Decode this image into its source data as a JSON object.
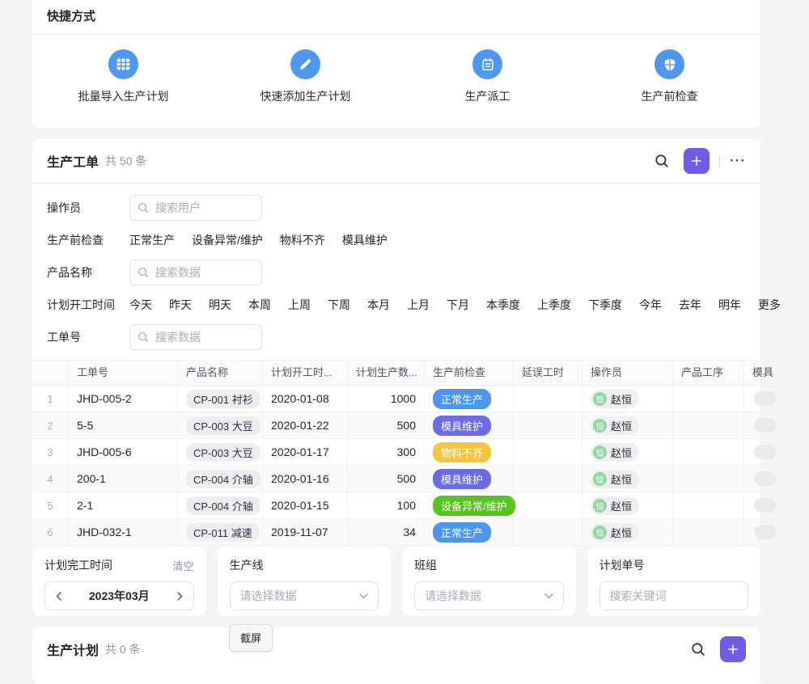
{
  "shortcuts": {
    "title": "快捷方式",
    "items": [
      {
        "label": "批量导入生产计划",
        "icon": "grid-icon"
      },
      {
        "label": "快速添加生产计划",
        "icon": "pencil-icon"
      },
      {
        "label": "生产派工",
        "icon": "clipboard-icon"
      },
      {
        "label": "生产前检查",
        "icon": "shield-icon"
      }
    ]
  },
  "work_orders": {
    "title": "生产工单",
    "count_text": "共 50 条",
    "filters": [
      {
        "label": "操作员",
        "type": "search",
        "placeholder": "搜索用户"
      },
      {
        "label": "生产前检查",
        "type": "options",
        "options": [
          "正常生产",
          "设备异常/维护",
          "物料不齐",
          "模具维护"
        ]
      },
      {
        "label": "产品名称",
        "type": "search",
        "placeholder": "搜索数据"
      },
      {
        "label": "计划开工时间",
        "type": "options",
        "options": [
          "今天",
          "昨天",
          "明天",
          "本周",
          "上周",
          "下周",
          "本月",
          "上月",
          "下月",
          "本季度",
          "上季度",
          "下季度",
          "今年",
          "去年",
          "明年"
        ],
        "more": "更多"
      },
      {
        "label": "工单号",
        "type": "search",
        "placeholder": "搜索数据"
      }
    ],
    "table": {
      "columns": [
        "",
        "工单号",
        "产品名称",
        "计划开工时...",
        "计划生产数...",
        "生产前检查",
        "延误工时",
        "操作员",
        "产品工序",
        "模具"
      ],
      "rows": [
        {
          "num": "1",
          "order_no": "JHD-005-2",
          "product": "CP-001 衬衫",
          "start_date": "2020-01-08",
          "qty": "1000",
          "check": "正常生产",
          "delay": "",
          "operator": "赵恒",
          "avatar_char": "恒"
        },
        {
          "num": "2",
          "order_no": "5-5",
          "product": "CP-003 大豆",
          "start_date": "2020-01-22",
          "qty": "500",
          "check": "模具维护",
          "delay": "",
          "operator": "赵恒",
          "avatar_char": "恒"
        },
        {
          "num": "3",
          "order_no": "JHD-005-6",
          "product": "CP-003 大豆",
          "start_date": "2020-01-17",
          "qty": "300",
          "check": "物料不齐",
          "delay": "",
          "operator": "赵恒",
          "avatar_char": "恒"
        },
        {
          "num": "4",
          "order_no": "200-1",
          "product": "CP-004 介轴",
          "start_date": "2020-01-16",
          "qty": "500",
          "check": "模具维护",
          "delay": "",
          "operator": "赵恒",
          "avatar_char": "恒"
        },
        {
          "num": "5",
          "order_no": "2-1",
          "product": "CP-004 介轴",
          "start_date": "2020-01-15",
          "qty": "100",
          "check": "设备异常/维护",
          "delay": "",
          "operator": "赵恒",
          "avatar_char": "恒"
        },
        {
          "num": "6",
          "order_no": "JHD-032-1",
          "product": "CP-011 减速",
          "start_date": "2019-11-07",
          "qty": "34",
          "check": "正常生产",
          "delay": "",
          "operator": "赵恒",
          "avatar_char": "恒"
        }
      ]
    }
  },
  "bottom_filters": {
    "cards": [
      {
        "type": "month",
        "label": "计划完工时间",
        "clear_label": "清空",
        "month_value": "2023年03月"
      },
      {
        "type": "select",
        "label": "生产线",
        "placeholder": "请选择数据"
      },
      {
        "type": "select",
        "label": "班组",
        "placeholder": "请选择数据"
      },
      {
        "type": "search",
        "label": "计划单号",
        "placeholder": "搜索关键词"
      }
    ]
  },
  "production_plan": {
    "title": "生产计划",
    "count_text": "共 0 条"
  },
  "screenshot_button": {
    "label": "截屏"
  },
  "colors": {
    "accent_purple": "#6E5BE6",
    "icon_blue": "#4E97EE",
    "avatar_green": "#8FD79E",
    "status": {
      "正常生产": "#4D96F0",
      "模具维护": "#6B6AE8",
      "物料不齐": "#F4C63F",
      "设备异常/维护": "#55C41E"
    }
  }
}
